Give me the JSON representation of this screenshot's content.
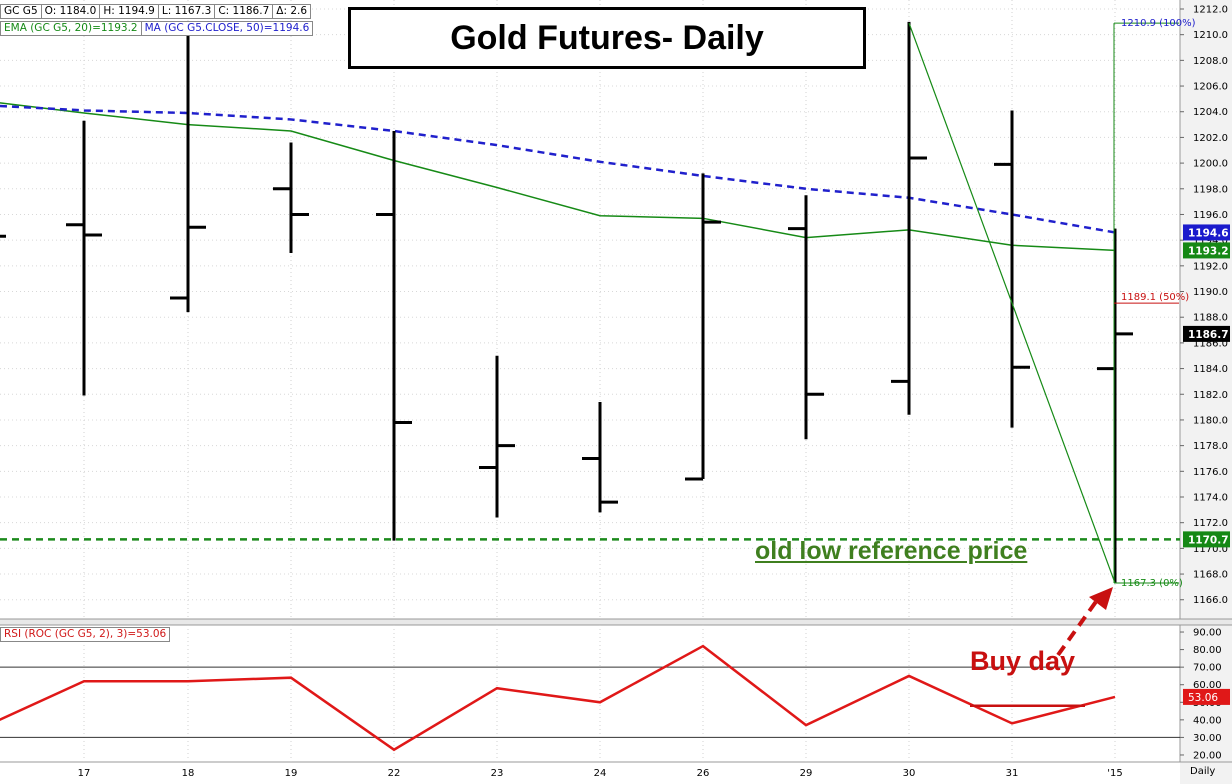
{
  "info_bar": {
    "symbol": "GC G5",
    "open": "O: 1184.0",
    "high": "H: 1194.9",
    "low": "L: 1167.3",
    "close": "C: 1186.7",
    "change": "Δ: 2.6"
  },
  "ma_legend": {
    "ema": "EMA (GC G5, 20)=1193.2",
    "ma": "MA (GC G5.CLOSE, 50)=1194.6"
  },
  "title": "Gold Futures- Daily",
  "old_low_label": "old low reference price",
  "buy_day_label": "Buy day",
  "rsi_legend": "RSI (ROC (GC G5, 2), 3)=53.06",
  "periodicity": "Daily",
  "colors": {
    "ema": "#168a16",
    "ma": "#2020cc",
    "rsi": "#e01818",
    "annotation_green": "#3f7f1f",
    "annotation_red": "#c81010",
    "reference_line": "#1d8a1d"
  },
  "chart_data": [
    {
      "type": "ohlc",
      "x_labels": [
        "",
        "17",
        "18",
        "19",
        "22",
        "23",
        "24",
        "26",
        "29",
        "30",
        "31",
        "'15"
      ],
      "ohlc": [
        {
          "x": "",
          "open": null,
          "high": null,
          "low": null,
          "close": 1194.3
        },
        {
          "x": "17",
          "open": 1195.2,
          "high": 1203.3,
          "low": 1181.9,
          "close": 1194.4
        },
        {
          "x": "18",
          "open": 1189.5,
          "high": 1210.5,
          "low": 1188.4,
          "close": 1195.0
        },
        {
          "x": "19",
          "open": 1198.0,
          "high": 1201.6,
          "low": 1193.0,
          "close": 1196.0
        },
        {
          "x": "22",
          "open": 1196.0,
          "high": 1202.5,
          "low": 1170.6,
          "close": 1179.8
        },
        {
          "x": "23",
          "open": 1176.3,
          "high": 1185.0,
          "low": 1172.4,
          "close": 1178.0
        },
        {
          "x": "24",
          "open": 1177.0,
          "high": 1181.4,
          "low": 1172.8,
          "close": 1173.6
        },
        {
          "x": "26",
          "open": 1175.4,
          "high": 1199.2,
          "low": 1175.4,
          "close": 1195.4
        },
        {
          "x": "29",
          "open": 1194.9,
          "high": 1197.5,
          "low": 1178.5,
          "close": 1182.0
        },
        {
          "x": "30",
          "open": 1183.0,
          "high": 1211.0,
          "low": 1180.4,
          "close": 1200.4
        },
        {
          "x": "31",
          "open": 1199.9,
          "high": 1204.1,
          "low": 1179.4,
          "close": 1184.1
        },
        {
          "x": "'15",
          "open": 1184.0,
          "high": 1194.9,
          "low": 1167.3,
          "close": 1186.7
        }
      ],
      "ema_20": [
        1204.8,
        1203.9,
        1203.0,
        1202.5,
        1200.2,
        1198.1,
        1195.9,
        1195.7,
        1194.2,
        1194.8,
        1193.6,
        1193.2
      ],
      "ma_50": [
        1204.5,
        1204.1,
        1203.9,
        1203.4,
        1202.5,
        1201.4,
        1200.1,
        1199.0,
        1198.0,
        1197.3,
        1196.0,
        1194.6
      ],
      "reference_line": 1170.7,
      "fib": {
        "high": 1210.9,
        "mid": 1189.1,
        "low": 1167.3,
        "labels": [
          "1210.9 (100%)",
          "1189.1 (50%)",
          "1167.3 (0%)"
        ]
      },
      "price_tags": [
        {
          "value": "1194.6",
          "color": "#1a1acc"
        },
        {
          "value": "1193.2",
          "color": "#158815"
        },
        {
          "value": "1186.7",
          "color": "#000000"
        },
        {
          "value": "1170.7",
          "color": "#158815"
        }
      ],
      "y_ticks": [
        "1166.0",
        "1168.0",
        "1170.0",
        "1172.0",
        "1174.0",
        "1176.0",
        "1178.0",
        "1180.0",
        "1182.0",
        "1184.0",
        "1186.0",
        "1188.0",
        "1190.0",
        "1192.0",
        "1194.0",
        "1196.0",
        "1198.0",
        "1200.0",
        "1202.0",
        "1204.0",
        "1206.0",
        "1208.0",
        "1210.0",
        "1212.0"
      ],
      "ylim": [
        1164.5,
        1212.7
      ]
    },
    {
      "type": "line",
      "name": "RSI",
      "values": [
        37,
        62,
        62,
        64,
        23,
        58,
        50,
        82,
        37,
        65,
        38,
        53.06
      ],
      "levels": [
        30,
        70
      ],
      "y_ticks": [
        "20.00",
        "30.00",
        "40.00",
        "50.00",
        "60.00",
        "70.00",
        "80.00",
        "90.00"
      ],
      "ylim": [
        16,
        94
      ],
      "last_value": "53.06"
    }
  ]
}
